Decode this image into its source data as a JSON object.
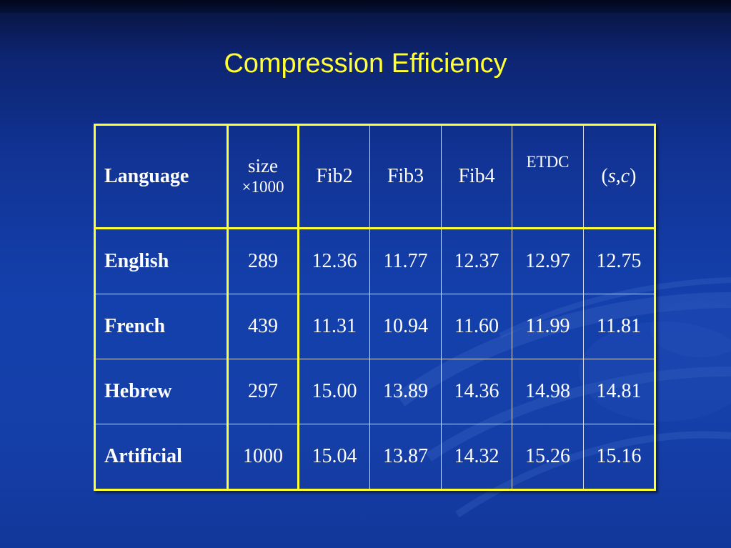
{
  "slide": {
    "title": "Compression Efficiency"
  },
  "table": {
    "headers": {
      "language": "Language",
      "size_line1": "size",
      "size_line2": "×1000",
      "fib2": "Fib2",
      "fib3": "Fib3",
      "fib4": "Fib4",
      "etdc": "ETDC",
      "sc_open": "(",
      "sc_s": "s",
      "sc_comma": ",",
      "sc_c": "c",
      "sc_close": ")"
    },
    "rows": [
      {
        "language": "English",
        "size": "289",
        "fib2": "12.36",
        "fib3": "11.77",
        "fib4": "12.37",
        "etdc": "12.97",
        "sc": "12.75"
      },
      {
        "language": "French",
        "size": "439",
        "fib2": "11.31",
        "fib3": "10.94",
        "fib4": "11.60",
        "etdc": "11.99",
        "sc": "11.81"
      },
      {
        "language": "Hebrew",
        "size": "297",
        "fib2": "15.00",
        "fib3": "13.89",
        "fib4": "14.36",
        "etdc": "14.98",
        "sc": "14.81"
      },
      {
        "language": "Artificial",
        "size": "1000",
        "fib2": "15.04",
        "fib3": "13.87",
        "fib4": "14.32",
        "etdc": "15.26",
        "sc": "15.16"
      }
    ]
  },
  "colors": {
    "title": "#ffff33",
    "grid_accent": "#ffff33",
    "cell_text": "#ffffff",
    "background": "#1440ad"
  }
}
